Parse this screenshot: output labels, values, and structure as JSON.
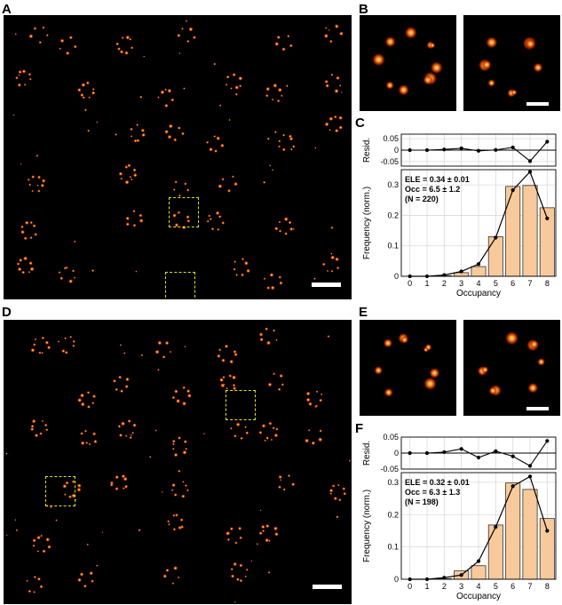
{
  "figure": {
    "labels": {
      "A": "A",
      "B": "B",
      "C": "C",
      "D": "D",
      "E": "E",
      "F": "F"
    },
    "colors": {
      "background": "#000000",
      "spot_hot": "#fff2a8",
      "spot_mid": "#ff8a1a",
      "spot_dim": "#b01c00",
      "box": "#e5e51a",
      "bar_fill": "#f8c99a",
      "bar_edge": "#333333",
      "line": "#000000",
      "grid": "#d9d9d9"
    }
  },
  "chart_data": [
    {
      "type": "bar",
      "panel": "C",
      "xlabel": "Occupancy",
      "ylabel": "Frequency (norm.)",
      "resid_label": "Resid.",
      "categories": [
        0,
        1,
        2,
        3,
        4,
        5,
        6,
        7,
        8
      ],
      "ylim": [
        0,
        0.35
      ],
      "yticks": [
        0,
        0.1,
        0.2,
        0.3
      ],
      "resid_ylim": [
        -0.07,
        0.07
      ],
      "resid_yticks": [
        0.05,
        0,
        -0.05
      ],
      "annotations": [
        "ELE = 0.34 ± 0.01",
        "Occ = 6.5 ± 1.2",
        "(N = 220)"
      ],
      "series": [
        {
          "kind": "bar",
          "values": [
            0,
            0,
            0.002,
            0.012,
            0.032,
            0.13,
            0.295,
            0.298,
            0.225
          ]
        },
        {
          "kind": "line",
          "values": [
            0,
            0,
            0.004,
            0.016,
            0.04,
            0.127,
            0.283,
            0.343,
            0.19
          ]
        }
      ],
      "residuals": [
        0,
        0,
        0.003,
        0.008,
        -0.003,
        0.001,
        0.012,
        -0.048,
        0.037
      ]
    },
    {
      "type": "bar",
      "panel": "F",
      "xlabel": "Occupancy",
      "ylabel": "Frequency (norm.)",
      "resid_label": "Resid.",
      "categories": [
        0,
        1,
        2,
        3,
        4,
        5,
        6,
        7,
        8
      ],
      "ylim": [
        0,
        0.33
      ],
      "yticks": [
        0,
        0.1,
        0.2,
        0.3
      ],
      "resid_ylim": [
        -0.05,
        0.05
      ],
      "resid_yticks": [
        0.05,
        0,
        -0.05
      ],
      "annotations": [
        "ELE = 0.32 ± 0.01",
        "Occ = 6.3 ± 1.3",
        "(N = 198)"
      ],
      "series": [
        {
          "kind": "bar",
          "values": [
            0,
            0,
            0.002,
            0.026,
            0.042,
            0.168,
            0.298,
            0.278,
            0.188
          ]
        },
        {
          "kind": "line",
          "values": [
            0,
            0,
            0.005,
            0.013,
            0.056,
            0.162,
            0.288,
            0.318,
            0.15
          ]
        }
      ],
      "residuals": [
        0,
        0,
        0.003,
        0.013,
        -0.014,
        0.006,
        -0.01,
        -0.04,
        0.038
      ]
    }
  ]
}
